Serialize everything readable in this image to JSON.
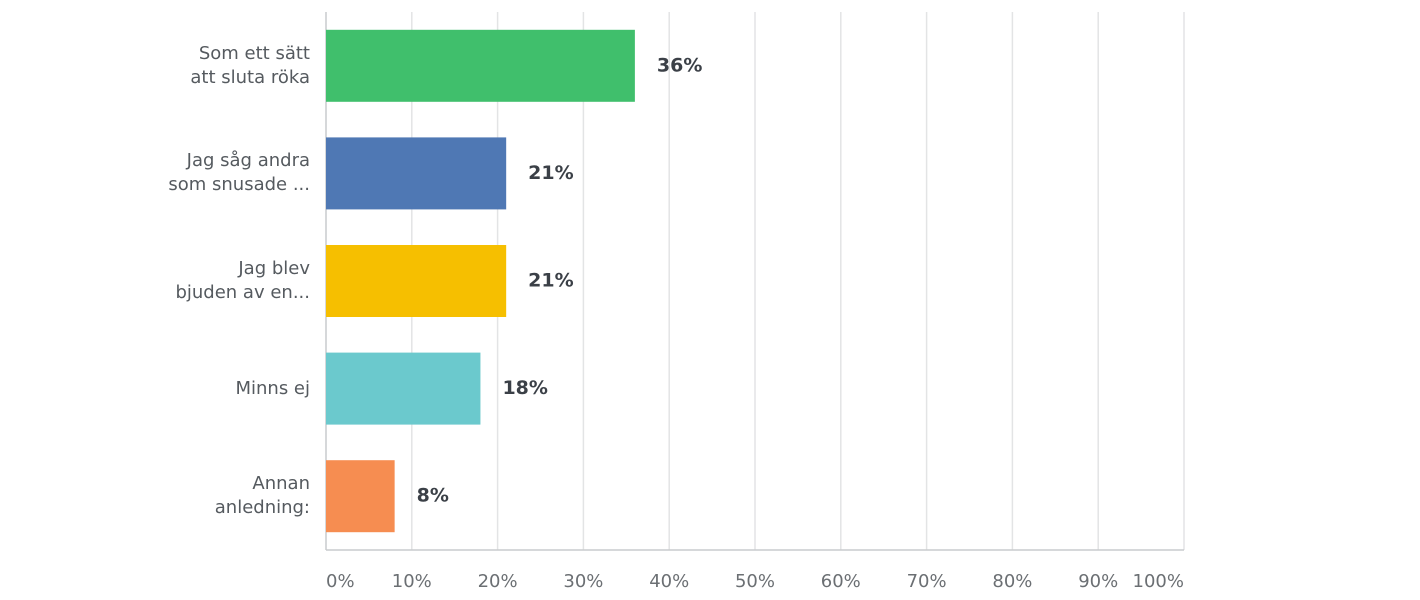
{
  "chart_data": {
    "type": "hbar",
    "categories": [
      "Som ett sätt\natt sluta röka",
      "Jag såg andra\nsom snusade ...",
      "Jag blev\nbjuden av en...",
      "Minns ej",
      "Annan\nanledning:"
    ],
    "values": [
      36,
      21,
      21,
      18,
      8
    ],
    "value_labels": [
      "36%",
      "21%",
      "21%",
      "18%",
      "8%"
    ],
    "colors": [
      "#40bf6c",
      "#4f78b4",
      "#f6bf00",
      "#6bc9cd",
      "#f68d51"
    ],
    "xlim": [
      0,
      100
    ],
    "xticks": [
      {
        "value": 0,
        "label": "0%"
      },
      {
        "value": 10,
        "label": "10%"
      },
      {
        "value": 20,
        "label": "20%"
      },
      {
        "value": 30,
        "label": "30%"
      },
      {
        "value": 40,
        "label": "40%"
      },
      {
        "value": 50,
        "label": "50%"
      },
      {
        "value": 60,
        "label": "60%"
      },
      {
        "value": 70,
        "label": "70%"
      },
      {
        "value": 80,
        "label": "80%"
      },
      {
        "value": 90,
        "label": "90%"
      },
      {
        "value": 100,
        "label": "100%"
      }
    ],
    "grid": true
  }
}
